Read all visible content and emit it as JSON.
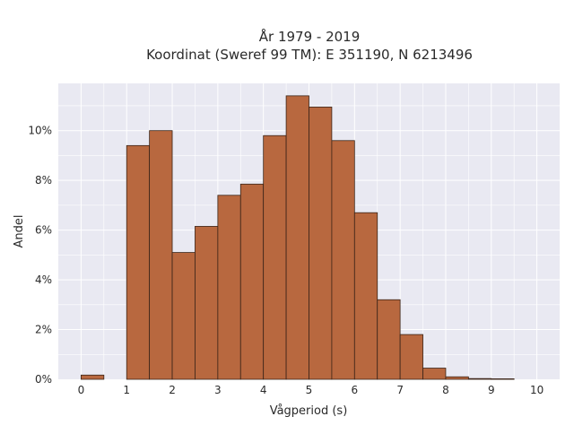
{
  "chart_data": {
    "type": "bar",
    "title": [
      "År 1979 - 2019",
      "Koordinat (Sweref 99 TM): E 351190, N 6213496"
    ],
    "xlabel": "Vågperiod (s)",
    "ylabel": "Andel",
    "bin_width": 0.5,
    "bins": [
      {
        "start": 0.0,
        "value": 0.17
      },
      {
        "start": 0.5,
        "value": 0.0
      },
      {
        "start": 1.0,
        "value": 9.4
      },
      {
        "start": 1.5,
        "value": 10.0
      },
      {
        "start": 2.0,
        "value": 5.1
      },
      {
        "start": 2.5,
        "value": 6.15
      },
      {
        "start": 3.0,
        "value": 7.4
      },
      {
        "start": 3.5,
        "value": 7.85
      },
      {
        "start": 4.0,
        "value": 9.8
      },
      {
        "start": 4.5,
        "value": 11.4
      },
      {
        "start": 5.0,
        "value": 10.95
      },
      {
        "start": 5.5,
        "value": 9.6
      },
      {
        "start": 6.0,
        "value": 6.7
      },
      {
        "start": 6.5,
        "value": 3.2
      },
      {
        "start": 7.0,
        "value": 1.8
      },
      {
        "start": 7.5,
        "value": 0.45
      },
      {
        "start": 8.0,
        "value": 0.1
      },
      {
        "start": 8.5,
        "value": 0.03
      },
      {
        "start": 9.0,
        "value": 0.02
      },
      {
        "start": 9.5,
        "value": 0.0
      }
    ],
    "xticks": [
      0,
      1,
      2,
      3,
      4,
      5,
      6,
      7,
      8,
      9,
      10
    ],
    "xlim": [
      -0.5,
      10.5
    ],
    "yticks": [
      0,
      2,
      4,
      6,
      8,
      10
    ],
    "ytick_labels": [
      "0%",
      "2%",
      "4%",
      "6%",
      "8%",
      "10%"
    ],
    "ylim": [
      0,
      11.9
    ],
    "grid": true,
    "bar_color": "#b8683f",
    "bar_edge_color": "#3a2418",
    "plot_background": "#e9e9f2",
    "grid_color": "#ffffff"
  }
}
